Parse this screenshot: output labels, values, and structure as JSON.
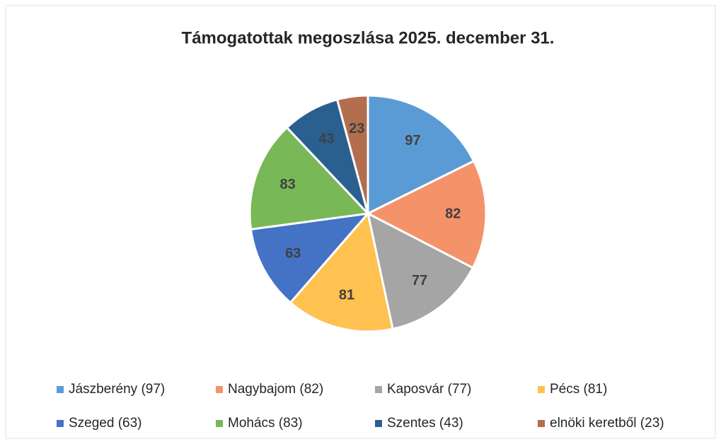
{
  "chart_data": {
    "type": "pie",
    "title": "Támogatottak megoszlása 2025. december 31.",
    "categories": [
      "Jászberény (97)",
      "Nagybajom (82)",
      "Kaposvár (77)",
      "Pécs (81)",
      "Szeged (63)",
      "Mohács (83)",
      "Szentes (43)",
      "elnöki keretből (23)"
    ],
    "values": [
      97,
      82,
      77,
      81,
      63,
      83,
      43,
      23
    ],
    "colors": [
      "#5b9bd5",
      "#f4926a",
      "#a5a5a5",
      "#ffc14f",
      "#4472c4",
      "#78b857",
      "#2a6090",
      "#b26e4e"
    ]
  }
}
